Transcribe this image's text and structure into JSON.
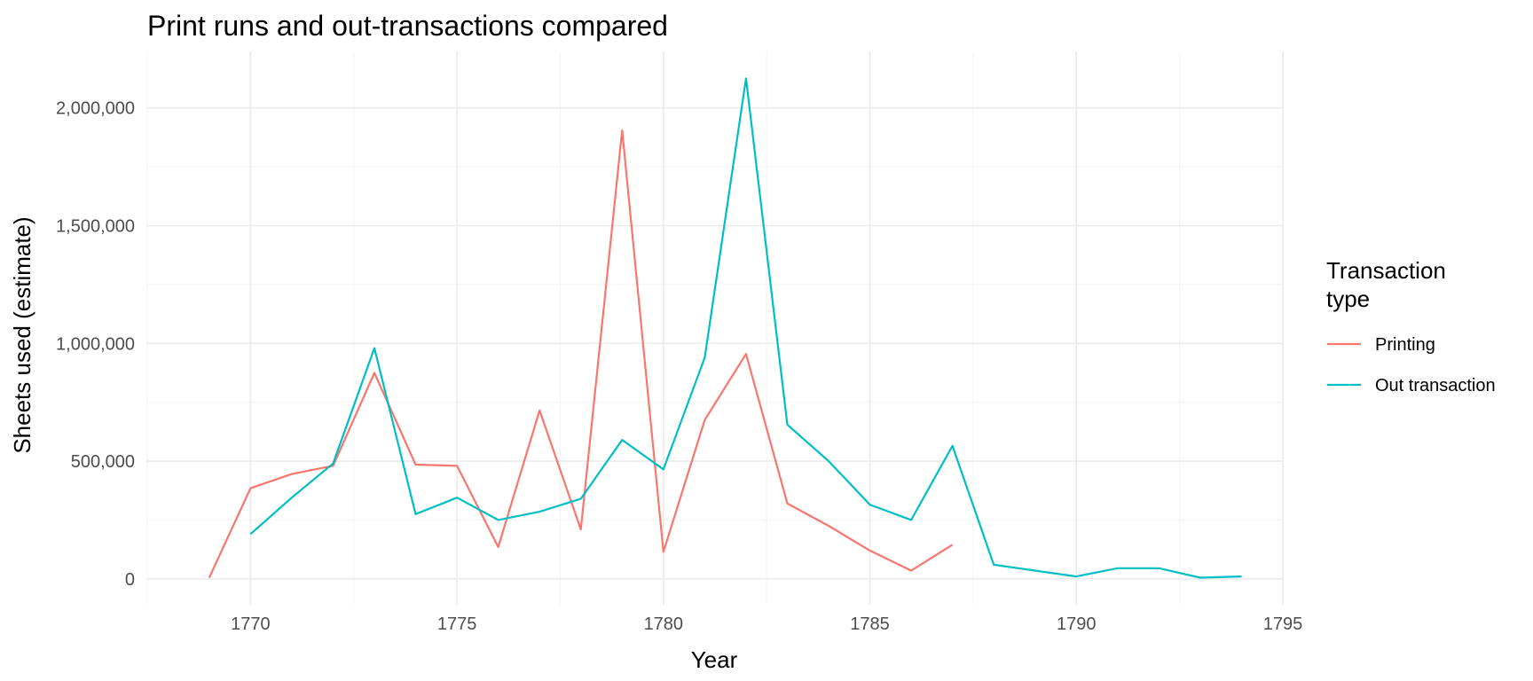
{
  "chart_data": {
    "type": "line",
    "title": "Print runs and out-transactions compared",
    "xlabel": "Year",
    "ylabel": "Sheets used (estimate)",
    "xlim": [
      1767.5,
      1795.0
    ],
    "ylim": [
      -110000,
      2240000
    ],
    "x_ticks": [
      1770,
      1775,
      1780,
      1785,
      1790,
      1795
    ],
    "y_ticks": [
      0,
      500000,
      1000000,
      1500000,
      2000000
    ],
    "y_tick_labels": [
      "0",
      "500,000",
      "1,000,000",
      "1,500,000",
      "2,000,000"
    ],
    "grid": true,
    "legend": {
      "title_lines": [
        "Transaction",
        "type"
      ],
      "position": "right"
    },
    "series": [
      {
        "name": "Printing",
        "color": "#F8766D",
        "x": [
          1769,
          1770,
          1771,
          1772,
          1773,
          1774,
          1775,
          1776,
          1777,
          1778,
          1779,
          1780,
          1781,
          1782,
          1783,
          1784,
          1785,
          1786,
          1787
        ],
        "y": [
          5000,
          385000,
          445000,
          480000,
          875000,
          485000,
          480000,
          135000,
          715000,
          210000,
          1905000,
          115000,
          675000,
          955000,
          320000,
          225000,
          120000,
          35000,
          145000
        ]
      },
      {
        "name": "Out transaction",
        "color": "#00BFC4",
        "x": [
          1770,
          1771,
          1772,
          1773,
          1774,
          1775,
          1776,
          1777,
          1778,
          1779,
          1780,
          1781,
          1782,
          1783,
          1784,
          1785,
          1786,
          1787,
          1788,
          1789,
          1790,
          1791,
          1792,
          1793,
          1794
        ],
        "y": [
          190000,
          345000,
          490000,
          980000,
          275000,
          345000,
          250000,
          285000,
          340000,
          590000,
          465000,
          940000,
          2125000,
          655000,
          500000,
          315000,
          250000,
          565000,
          60000,
          35000,
          10000,
          45000,
          45000,
          5000,
          10000
        ]
      }
    ]
  }
}
